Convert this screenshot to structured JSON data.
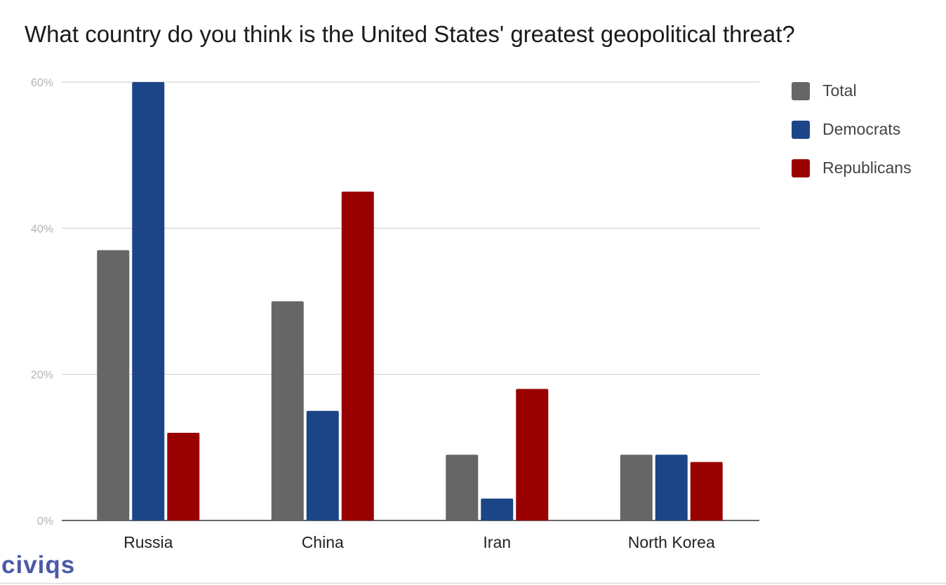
{
  "chart_data": {
    "type": "bar",
    "title": "What country do you think is the United States' greatest geopolitical threat?",
    "categories": [
      "Russia",
      "China",
      "Iran",
      "North Korea"
    ],
    "series": [
      {
        "name": "Total",
        "color": "#666666",
        "values": [
          37,
          30,
          9,
          9
        ]
      },
      {
        "name": "Democrats",
        "color": "#1c4587",
        "values": [
          60,
          15,
          3,
          9
        ]
      },
      {
        "name": "Republicans",
        "color": "#990000",
        "values": [
          12,
          45,
          18,
          8
        ]
      }
    ],
    "ylim": [
      0,
      60
    ],
    "yticks": [
      "0%",
      "20%",
      "40%",
      "60%"
    ],
    "ytick_values": [
      0,
      20,
      40,
      60
    ],
    "grid": true,
    "legend_position": "right"
  },
  "logo": {
    "text": "civiqs"
  }
}
